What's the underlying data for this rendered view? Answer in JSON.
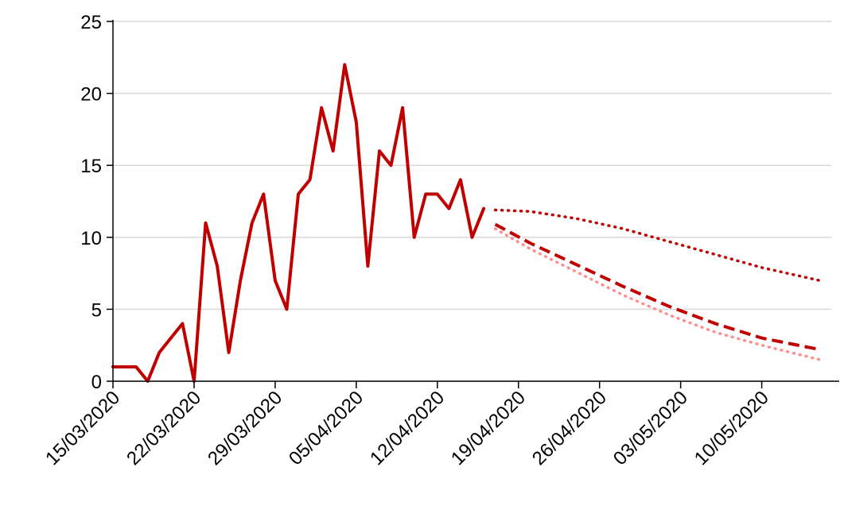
{
  "chart_data": {
    "type": "line",
    "title": "",
    "xlabel": "",
    "ylabel": "",
    "ylim": [
      0,
      25
    ],
    "yticks": [
      "0",
      "5",
      "10",
      "15",
      "20",
      "25"
    ],
    "xlim": [
      "15/03/2020",
      "16/05/2020"
    ],
    "xticks": [
      "15/03/2020",
      "22/03/2020",
      "29/03/2020",
      "05/04/2020",
      "12/04/2020",
      "19/04/2020",
      "26/04/2020",
      "03/05/2020",
      "10/05/2020"
    ],
    "grid": "horizontal",
    "series": [
      {
        "style": "solid",
        "color": "#C00000",
        "points": [
          [
            "15/03/2020",
            1
          ],
          [
            "16/03/2020",
            1
          ],
          [
            "17/03/2020",
            1
          ],
          [
            "18/03/2020",
            0
          ],
          [
            "19/03/2020",
            2
          ],
          [
            "20/03/2020",
            3
          ],
          [
            "21/03/2020",
            4
          ],
          [
            "22/03/2020",
            0
          ],
          [
            "23/03/2020",
            11
          ],
          [
            "24/03/2020",
            8
          ],
          [
            "25/03/2020",
            2
          ],
          [
            "26/03/2020",
            7
          ],
          [
            "27/03/2020",
            11
          ],
          [
            "28/03/2020",
            13
          ],
          [
            "29/03/2020",
            7
          ],
          [
            "30/03/2020",
            5
          ],
          [
            "31/03/2020",
            13
          ],
          [
            "01/04/2020",
            14
          ],
          [
            "02/04/2020",
            19
          ],
          [
            "03/04/2020",
            16
          ],
          [
            "04/04/2020",
            22
          ],
          [
            "05/04/2020",
            18
          ],
          [
            "06/04/2020",
            8
          ],
          [
            "07/04/2020",
            16
          ],
          [
            "08/04/2020",
            15
          ],
          [
            "09/04/2020",
            19
          ],
          [
            "10/04/2020",
            10
          ],
          [
            "11/04/2020",
            13
          ],
          [
            "12/04/2020",
            13
          ],
          [
            "13/04/2020",
            12
          ],
          [
            "14/04/2020",
            14
          ],
          [
            "15/04/2020",
            10
          ],
          [
            "16/04/2020",
            12
          ]
        ]
      },
      {
        "style": "dotted",
        "color": "#C00000",
        "points": [
          [
            "17/04/2020",
            11.9
          ],
          [
            "20/04/2020",
            11.8
          ],
          [
            "24/04/2020",
            11.3
          ],
          [
            "28/04/2020",
            10.6
          ],
          [
            "02/05/2020",
            9.7
          ],
          [
            "06/05/2020",
            8.8
          ],
          [
            "10/05/2020",
            7.9
          ],
          [
            "15/05/2020",
            7.0
          ]
        ]
      },
      {
        "style": "dashed",
        "color": "#C00000",
        "points": [
          [
            "17/04/2020",
            10.9
          ],
          [
            "20/04/2020",
            9.6
          ],
          [
            "24/04/2020",
            8.1
          ],
          [
            "28/04/2020",
            6.6
          ],
          [
            "02/05/2020",
            5.2
          ],
          [
            "06/05/2020",
            4.0
          ],
          [
            "10/05/2020",
            3.0
          ],
          [
            "15/05/2020",
            2.2
          ]
        ]
      },
      {
        "style": "dotted",
        "color": "#FF8F8F",
        "points": [
          [
            "17/04/2020",
            10.6
          ],
          [
            "20/04/2020",
            9.2
          ],
          [
            "24/04/2020",
            7.6
          ],
          [
            "28/04/2020",
            6.0
          ],
          [
            "02/05/2020",
            4.6
          ],
          [
            "06/05/2020",
            3.4
          ],
          [
            "10/05/2020",
            2.5
          ],
          [
            "15/05/2020",
            1.5
          ]
        ]
      }
    ]
  }
}
